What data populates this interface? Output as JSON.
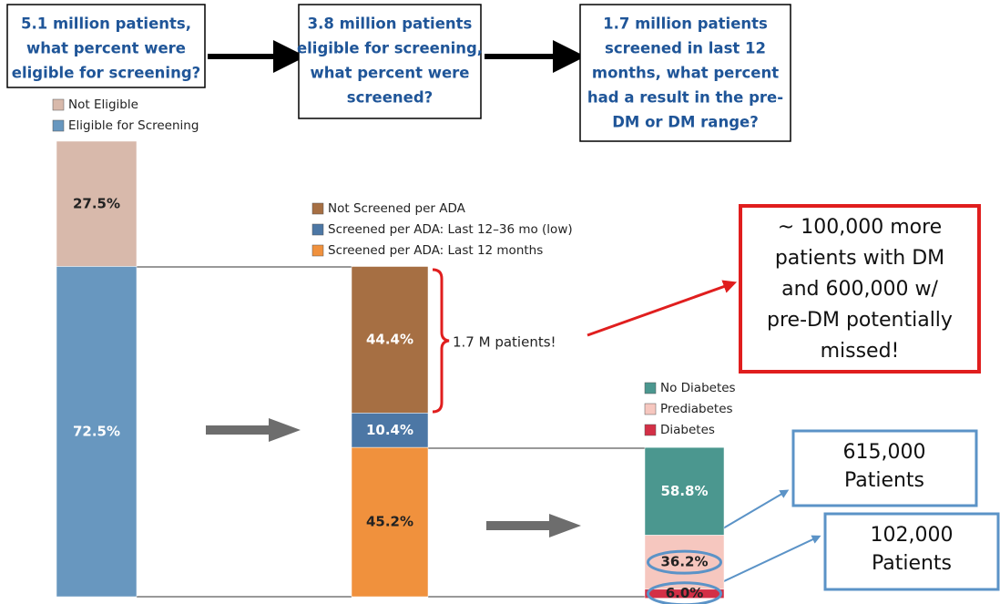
{
  "chart_data": {
    "type": "funnel_stack",
    "boxes": [
      {
        "lines": [
          "5.1 million patients,",
          "what percent were",
          "eligible for screening?"
        ]
      },
      {
        "lines": [
          "3.8 million patients",
          "eligible for screening,",
          "what percent were",
          "screened?"
        ]
      },
      {
        "lines": [
          "1.7 million patients",
          "screened in last 12",
          "months, what percent",
          "had a result in the pre-",
          "DM or DM range?"
        ]
      }
    ],
    "bars": [
      {
        "series": [
          {
            "name": "Not Eligible",
            "color": "#d8b9ab",
            "value": 27.5,
            "value_label": "27.5%",
            "label_color": "#222"
          },
          {
            "name": "Eligible for Screening",
            "color": "#6897bf",
            "value": 72.5,
            "value_label": "72.5%",
            "label_color": "#fff"
          }
        ]
      },
      {
        "series": [
          {
            "name": "Not Screened per ADA",
            "color": "#a66f43",
            "value": 44.4,
            "value_label": "44.4%",
            "label_color": "#fff"
          },
          {
            "name": "Screened per ADA: Last 12–36 mo (low)",
            "color": "#4c77a5",
            "value": 10.4,
            "value_label": "10.4%",
            "label_color": "#fff"
          },
          {
            "name": "Screened per ADA: Last 12 months",
            "color": "#f0913d",
            "value": 45.2,
            "value_label": "45.2%",
            "label_color": "#222"
          }
        ]
      },
      {
        "series": [
          {
            "name": "No Diabetes",
            "color": "#4b978f",
            "value": 58.8,
            "value_label": "58.8%",
            "label_color": "#fff"
          },
          {
            "name": "Prediabetes",
            "color": "#f6c7bf",
            "value": 36.2,
            "value_label": "36.2%",
            "label_color": "#222"
          },
          {
            "name": "Diabetes",
            "color": "#d32f46",
            "value": 6.0,
            "value_label": "6.0%",
            "label_color": "#222"
          }
        ]
      }
    ],
    "brace_label": "1.7 M patients!",
    "red_note": [
      "~ 100,000 more",
      "patients with DM",
      "and 600,000 w/",
      "pre-DM potentially",
      "missed!"
    ],
    "callouts": [
      {
        "lines": [
          "615,000",
          "Patients"
        ]
      },
      {
        "lines": [
          "102,000",
          "Patients"
        ]
      }
    ]
  }
}
